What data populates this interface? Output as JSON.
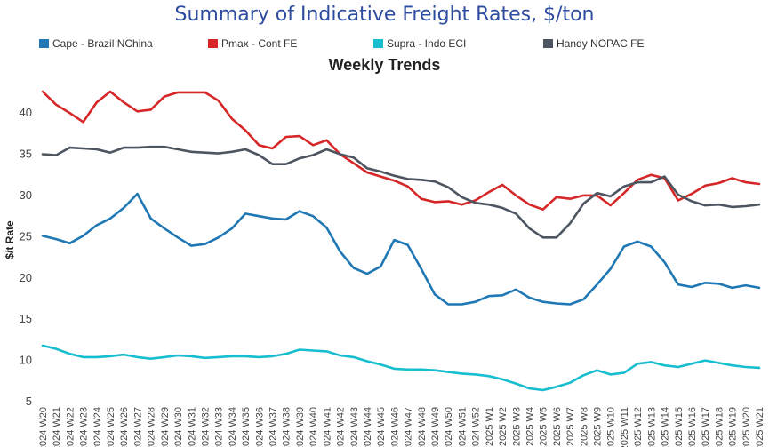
{
  "chart_data": {
    "type": "line",
    "title": "Summary of Indicative Freight Rates, $/ton",
    "subtitle": "Weekly Trends",
    "ylabel": "$/t Rate",
    "xlabel": "",
    "ylim": [
      5,
      44
    ],
    "yticks": [
      5,
      10,
      15,
      20,
      25,
      30,
      35,
      40
    ],
    "grid": false,
    "legend_position": "top",
    "x": [
      "2024 W20",
      "2024 W21",
      "2024 W22",
      "2024 W23",
      "2024 W24",
      "2024 W25",
      "2024 W26",
      "2024 W27",
      "2024 W28",
      "2024 W29",
      "2024 W30",
      "2024 W31",
      "2024 W32",
      "2024 W33",
      "2024 W34",
      "2024 W35",
      "2024 W36",
      "2024 W37",
      "2024 W38",
      "2024 W39",
      "2024 W40",
      "2024 W41",
      "2024 W42",
      "2024 W43",
      "2024 W44",
      "2024 W45",
      "2024 W46",
      "2024 W47",
      "2024 W48",
      "2024 W49",
      "2024 W50",
      "2024 W51",
      "2024 W52",
      "2025 W1",
      "2025 W2",
      "2025 W3",
      "2025 W4",
      "2025 W5",
      "2025 W6",
      "2025 W7",
      "2025 W8",
      "2025 W9",
      "2025 W10",
      "2025 W11",
      "2025 W12",
      "2025 W13",
      "2025 W14",
      "2025 W15",
      "2025 W16",
      "2025 W17",
      "2025 W18",
      "2025 W19",
      "2025 W20",
      "2025 W21"
    ],
    "series": [
      {
        "name": "Cape - Brazil NChina",
        "color": "#1F77B4",
        "values": [
          25.1,
          24.7,
          24.2,
          25.1,
          26.4,
          27.2,
          28.5,
          30.2,
          27.2,
          26.0,
          24.9,
          23.9,
          24.1,
          24.9,
          26.0,
          27.8,
          27.5,
          27.2,
          27.1,
          28.1,
          27.5,
          26.1,
          23.2,
          21.2,
          20.5,
          21.4,
          24.6,
          24.0,
          21.1,
          18.0,
          16.8,
          16.8,
          17.1,
          17.8,
          17.9,
          18.6,
          17.6,
          17.1,
          16.9,
          16.8,
          17.4,
          19.2,
          21.1,
          23.8,
          24.4,
          23.8,
          21.9,
          19.2,
          18.9,
          19.4,
          19.3,
          18.8,
          19.1,
          18.8
        ]
      },
      {
        "name": "Pmax - Cont FE",
        "color": "#D62728",
        "values": [
          42.6,
          41.0,
          40.0,
          38.9,
          41.3,
          42.6,
          41.3,
          40.2,
          40.4,
          42.0,
          42.5,
          42.5,
          42.5,
          41.5,
          39.3,
          37.9,
          36.1,
          35.7,
          37.1,
          37.2,
          36.1,
          36.7,
          35.0,
          33.9,
          32.8,
          32.3,
          31.8,
          31.1,
          29.6,
          29.2,
          29.3,
          28.9,
          29.4,
          30.4,
          31.3,
          30.0,
          28.9,
          28.3,
          29.8,
          29.6,
          30.0,
          30.0,
          28.8,
          30.3,
          31.9,
          32.5,
          32.1,
          29.4,
          30.2,
          31.2,
          31.5,
          32.1,
          31.6,
          31.4
        ]
      },
      {
        "name": "Supra - Indo ECI",
        "color": "#17BECF",
        "values": [
          11.8,
          11.4,
          10.8,
          10.4,
          10.4,
          10.5,
          10.7,
          10.4,
          10.2,
          10.4,
          10.6,
          10.5,
          10.3,
          10.4,
          10.5,
          10.5,
          10.4,
          10.5,
          10.8,
          11.3,
          11.2,
          11.1,
          10.6,
          10.4,
          9.9,
          9.5,
          9.0,
          8.9,
          8.9,
          8.8,
          8.6,
          8.4,
          8.3,
          8.1,
          7.7,
          7.2,
          6.6,
          6.4,
          6.8,
          7.3,
          8.2,
          8.8,
          8.3,
          8.5,
          9.6,
          9.8,
          9.4,
          9.2,
          9.6,
          10.0,
          9.7,
          9.4,
          9.2,
          9.1
        ]
      },
      {
        "name": "Handy NOPAC FE",
        "color": "#4D5560",
        "values": [
          35.0,
          34.9,
          35.8,
          35.7,
          35.6,
          35.2,
          35.8,
          35.8,
          35.9,
          35.9,
          35.6,
          35.3,
          35.2,
          35.1,
          35.3,
          35.6,
          34.9,
          33.8,
          33.8,
          34.5,
          34.9,
          35.6,
          35.0,
          34.6,
          33.3,
          32.9,
          32.4,
          32.0,
          31.9,
          31.7,
          31.0,
          29.8,
          29.1,
          28.9,
          28.5,
          27.8,
          26.0,
          24.9,
          24.9,
          26.6,
          29.0,
          30.3,
          29.9,
          31.1,
          31.6,
          31.6,
          32.3,
          30.1,
          29.3,
          28.8,
          28.9,
          28.6,
          28.7,
          28.9
        ]
      }
    ]
  }
}
